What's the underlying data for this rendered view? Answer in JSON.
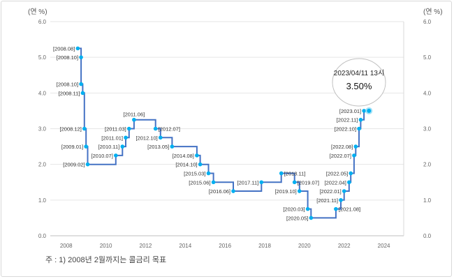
{
  "chart_data": {
    "type": "line",
    "step": true,
    "y_unit_left": "(연 %)",
    "y_unit_right": "(연 %)",
    "ylim": [
      0,
      6
    ],
    "yticks": [
      "0.0",
      "1.0",
      "2.0",
      "3.0",
      "4.0",
      "5.0",
      "6.0"
    ],
    "xlim": [
      2007.2,
      2025.0
    ],
    "xticks": [
      "2008",
      "2010",
      "2012",
      "2014",
      "2016",
      "2018",
      "2020",
      "2022",
      "2024"
    ],
    "grid": "horizontal",
    "series": [
      {
        "color": "#4472c4",
        "marker_color": "#00b0f0",
        "points": [
          {
            "date": "2008.08",
            "value": 5.25
          },
          {
            "date": "2008.10",
            "value": 5.0
          },
          {
            "date": "2008.10",
            "value": 4.25
          },
          {
            "date": "2008.11",
            "value": 4.0
          },
          {
            "date": "2008.12",
            "value": 3.0
          },
          {
            "date": "2009.01",
            "value": 2.5
          },
          {
            "date": "2009.02",
            "value": 2.0
          },
          {
            "date": "2010.07",
            "value": 2.25
          },
          {
            "date": "2010.11",
            "value": 2.5
          },
          {
            "date": "2011.01",
            "value": 2.75
          },
          {
            "date": "2011.03",
            "value": 3.0
          },
          {
            "date": "2011.06",
            "value": 3.25
          },
          {
            "date": "2012.07",
            "value": 3.0
          },
          {
            "date": "2012.10",
            "value": 2.75
          },
          {
            "date": "2013.05",
            "value": 2.5
          },
          {
            "date": "2014.08",
            "value": 2.25
          },
          {
            "date": "2014.10",
            "value": 2.0
          },
          {
            "date": "2015.03",
            "value": 1.75
          },
          {
            "date": "2015.06",
            "value": 1.5
          },
          {
            "date": "2016.06",
            "value": 1.25
          },
          {
            "date": "2017.11",
            "value": 1.5
          },
          {
            "date": "2018.11",
            "value": 1.75
          },
          {
            "date": "2019.07",
            "value": 1.5
          },
          {
            "date": "2019.10",
            "value": 1.25
          },
          {
            "date": "2020.03",
            "value": 0.75
          },
          {
            "date": "2020.05",
            "value": 0.5
          },
          {
            "date": "2021.08",
            "value": 0.75
          },
          {
            "date": "2021.11",
            "value": 1.0
          },
          {
            "date": "2022.01",
            "value": 1.25
          },
          {
            "date": "2022.04",
            "value": 1.5
          },
          {
            "date": "2022.05",
            "value": 1.75
          },
          {
            "date": "2022.07",
            "value": 2.25
          },
          {
            "date": "2022.08",
            "value": 2.5
          },
          {
            "date": "2022.10",
            "value": 3.0
          },
          {
            "date": "2022.11",
            "value": 3.25
          },
          {
            "date": "2023.01",
            "value": 3.5
          },
          {
            "date": "2023.04",
            "value": 3.5
          }
        ]
      }
    ],
    "annotation": {
      "date_text": "2023/04/11 13시",
      "value_text": "3.50%"
    },
    "footnote": "주 : 1) 2008년 2월까지는 콜금리 목표"
  }
}
